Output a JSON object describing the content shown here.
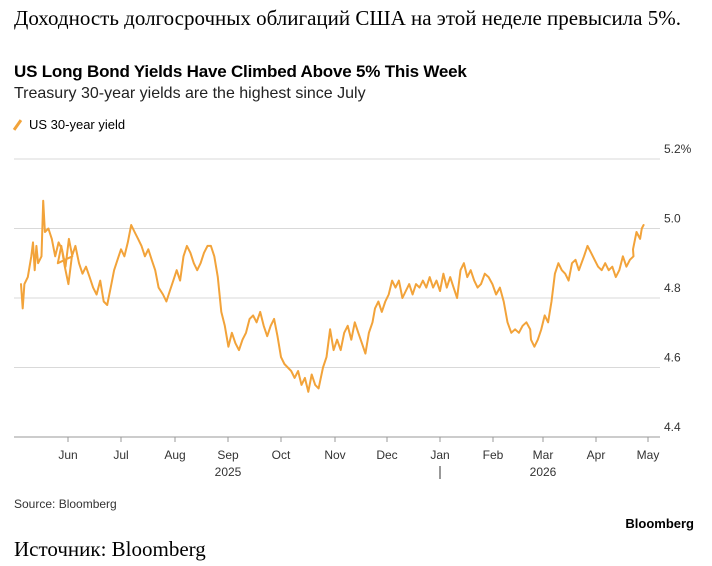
{
  "article": {
    "headline": "Доходность долгосрочных облигаций США на этой неделе превысила 5%.",
    "caption": "Источник: Bloomberg"
  },
  "chart_card": {
    "source": "Source: Bloomberg",
    "brand": "Bloomberg"
  },
  "colors": {
    "series": "#f2a33a",
    "grid": "#d9d9d9",
    "axis": "#999999",
    "text": "#333333"
  },
  "chart_data": {
    "type": "line",
    "title": "US Long Bond Yields Have Climbed Above 5% This Week",
    "subtitle": "Treasury 30-year yields are the highest since July",
    "xlabel": "",
    "ylabel": "",
    "ylim": [
      4.4,
      5.2
    ],
    "y_ticks": [
      4.4,
      4.6,
      4.8,
      5.0,
      5.2
    ],
    "y_tick_labels": [
      "4.4",
      "4.6",
      "4.8",
      "5.0",
      "5.2%"
    ],
    "x_ticks": [
      "Jun",
      "Jul",
      "Aug",
      "Sep",
      "Oct",
      "Nov",
      "Dec",
      "Jan",
      "Feb",
      "Mar",
      "Apr",
      "May"
    ],
    "x_years": [
      {
        "label": "2025",
        "month": "Sep"
      },
      {
        "label": "2026",
        "month": "Mar"
      }
    ],
    "year_divider_month": "Jan",
    "grid": true,
    "legend": "top-left",
    "series": [
      {
        "name": "US 30-year yield",
        "points": [
          [
            "May 1",
            4.84
          ],
          [
            "May 2",
            4.77
          ],
          [
            "May 3",
            4.84
          ],
          [
            "May 5",
            4.86
          ],
          [
            "May 7",
            4.92
          ],
          [
            "May 8",
            4.96
          ],
          [
            "May 9",
            4.88
          ],
          [
            "May 10",
            4.95
          ],
          [
            "May 11",
            4.9
          ],
          [
            "May 13",
            4.92
          ],
          [
            "May 14",
            5.08
          ],
          [
            "May 15",
            4.99
          ],
          [
            "May 17",
            5.0
          ],
          [
            "May 19",
            4.97
          ],
          [
            "May 21",
            4.92
          ],
          [
            "May 23",
            4.96
          ],
          [
            "May 25",
            4.94
          ],
          [
            "May 27",
            4.89
          ],
          [
            "May 29",
            4.97
          ],
          [
            "May 31",
            4.92
          ],
          [
            "Jun 2",
            4.9
          ],
          [
            "Jun 4",
            4.95
          ],
          [
            "Jun 6",
            4.89
          ],
          [
            "Jun 8",
            4.84
          ],
          [
            "Jun 10",
            4.92
          ],
          [
            "Jun 12",
            4.95
          ],
          [
            "Jun 14",
            4.9
          ],
          [
            "Jun 16",
            4.87
          ],
          [
            "Jun 18",
            4.89
          ],
          [
            "Jun 20",
            4.86
          ],
          [
            "Jun 22",
            4.83
          ],
          [
            "Jun 24",
            4.81
          ],
          [
            "Jun 26",
            4.85
          ],
          [
            "Jun 28",
            4.79
          ],
          [
            "Jun 30",
            4.78
          ],
          [
            "Jul 2",
            4.83
          ],
          [
            "Jul 4",
            4.88
          ],
          [
            "Jul 6",
            4.91
          ],
          [
            "Jul 8",
            4.94
          ],
          [
            "Jul 10",
            4.92
          ],
          [
            "Jul 12",
            4.96
          ],
          [
            "Jul 14",
            5.01
          ],
          [
            "Jul 16",
            4.99
          ],
          [
            "Jul 18",
            4.97
          ],
          [
            "Jul 20",
            4.95
          ],
          [
            "Jul 22",
            4.92
          ],
          [
            "Jul 24",
            4.94
          ],
          [
            "Jul 26",
            4.91
          ],
          [
            "Jul 28",
            4.88
          ],
          [
            "Jul 30",
            4.83
          ],
          [
            "Aug 1",
            4.81
          ],
          [
            "Aug 3",
            4.79
          ],
          [
            "Aug 5",
            4.82
          ],
          [
            "Aug 7",
            4.85
          ],
          [
            "Aug 9",
            4.88
          ],
          [
            "Aug 11",
            4.85
          ],
          [
            "Aug 13",
            4.92
          ],
          [
            "Aug 15",
            4.95
          ],
          [
            "Aug 17",
            4.93
          ],
          [
            "Aug 19",
            4.9
          ],
          [
            "Aug 21",
            4.88
          ],
          [
            "Aug 23",
            4.9
          ],
          [
            "Aug 25",
            4.93
          ],
          [
            "Aug 27",
            4.95
          ],
          [
            "Aug 29",
            4.95
          ],
          [
            "Aug 31",
            4.92
          ],
          [
            "Sep 2",
            4.86
          ],
          [
            "Sep 4",
            4.76
          ],
          [
            "Sep 6",
            4.72
          ],
          [
            "Sep 8",
            4.66
          ],
          [
            "Sep 10",
            4.7
          ],
          [
            "Sep 12",
            4.67
          ],
          [
            "Sep 14",
            4.65
          ],
          [
            "Sep 16",
            4.68
          ],
          [
            "Sep 18",
            4.7
          ],
          [
            "Sep 20",
            4.74
          ],
          [
            "Sep 22",
            4.75
          ],
          [
            "Sep 24",
            4.73
          ],
          [
            "Sep 26",
            4.76
          ],
          [
            "Sep 28",
            4.72
          ],
          [
            "Sep 30",
            4.69
          ],
          [
            "Oct 2",
            4.72
          ],
          [
            "Oct 4",
            4.74
          ],
          [
            "Oct 6",
            4.69
          ],
          [
            "Oct 8",
            4.63
          ],
          [
            "Oct 10",
            4.61
          ],
          [
            "Oct 12",
            4.6
          ],
          [
            "Oct 14",
            4.59
          ],
          [
            "Oct 16",
            4.57
          ],
          [
            "Oct 18",
            4.59
          ],
          [
            "Oct 20",
            4.55
          ],
          [
            "Oct 22",
            4.57
          ],
          [
            "Oct 24",
            4.53
          ],
          [
            "Oct 26",
            4.58
          ],
          [
            "Oct 28",
            4.55
          ],
          [
            "Oct 30",
            4.54
          ],
          [
            "Nov 1",
            4.6
          ],
          [
            "Nov 3",
            4.63
          ],
          [
            "Nov 5",
            4.71
          ],
          [
            "Nov 7",
            4.65
          ],
          [
            "Nov 9",
            4.68
          ],
          [
            "Nov 11",
            4.65
          ],
          [
            "Nov 13",
            4.7
          ],
          [
            "Nov 15",
            4.72
          ],
          [
            "Nov 17",
            4.68
          ],
          [
            "Nov 19",
            4.73
          ],
          [
            "Nov 21",
            4.7
          ],
          [
            "Nov 23",
            4.67
          ],
          [
            "Nov 25",
            4.64
          ],
          [
            "Nov 27",
            4.7
          ],
          [
            "Nov 29",
            4.73
          ],
          [
            "Dec 1",
            4.77
          ],
          [
            "Dec 3",
            4.79
          ],
          [
            "Dec 5",
            4.76
          ],
          [
            "Dec 7",
            4.79
          ],
          [
            "Dec 9",
            4.81
          ],
          [
            "Dec 11",
            4.85
          ],
          [
            "Dec 13",
            4.83
          ],
          [
            "Dec 15",
            4.85
          ],
          [
            "Dec 17",
            4.8
          ],
          [
            "Dec 19",
            4.82
          ],
          [
            "Dec 21",
            4.84
          ],
          [
            "Dec 23",
            4.81
          ],
          [
            "Dec 25",
            4.84
          ],
          [
            "Dec 27",
            4.83
          ],
          [
            "Dec 29",
            4.85
          ],
          [
            "Dec 31",
            4.83
          ],
          [
            "Jan 2",
            4.86
          ],
          [
            "Jan 4",
            4.83
          ],
          [
            "Jan 6",
            4.85
          ],
          [
            "Jan 8",
            4.82
          ],
          [
            "Jan 10",
            4.87
          ],
          [
            "Jan 12",
            4.83
          ],
          [
            "Jan 14",
            4.86
          ],
          [
            "Jan 16",
            4.83
          ],
          [
            "Jan 18",
            4.8
          ],
          [
            "Jan 20",
            4.88
          ],
          [
            "Jan 22",
            4.9
          ],
          [
            "Jan 24",
            4.86
          ],
          [
            "Jan 26",
            4.88
          ],
          [
            "Jan 28",
            4.85
          ],
          [
            "Jan 30",
            4.83
          ],
          [
            "Feb 1",
            4.84
          ],
          [
            "Feb 3",
            4.87
          ],
          [
            "Feb 5",
            4.86
          ],
          [
            "Feb 7",
            4.84
          ],
          [
            "Feb 9",
            4.81
          ],
          [
            "Feb 11",
            4.83
          ],
          [
            "Feb 13",
            4.79
          ],
          [
            "Feb 15",
            4.73
          ],
          [
            "Feb 17",
            4.7
          ],
          [
            "Feb 19",
            4.71
          ],
          [
            "Feb 21",
            4.7
          ],
          [
            "Feb 23",
            4.72
          ],
          [
            "Feb 25",
            4.73
          ],
          [
            "Feb 27",
            4.71
          ],
          [
            "Mar 1",
            4.68
          ],
          [
            "Mar 3",
            4.66
          ],
          [
            "Mar 5",
            4.68
          ],
          [
            "Mar 7",
            4.71
          ],
          [
            "Mar 9",
            4.75
          ],
          [
            "Mar 11",
            4.73
          ],
          [
            "Mar 13",
            4.79
          ],
          [
            "Mar 15",
            4.87
          ],
          [
            "Mar 17",
            4.9
          ],
          [
            "Mar 19",
            4.88
          ],
          [
            "Mar 21",
            4.87
          ],
          [
            "Mar 23",
            4.85
          ],
          [
            "Mar 25",
            4.9
          ],
          [
            "Mar 27",
            4.91
          ],
          [
            "Mar 29",
            4.88
          ],
          [
            "Apr 1",
            4.92
          ],
          [
            "Apr 3",
            4.95
          ],
          [
            "Apr 5",
            4.93
          ],
          [
            "Apr 7",
            4.91
          ],
          [
            "Apr 9",
            4.89
          ],
          [
            "Apr 11",
            4.88
          ],
          [
            "Apr 13",
            4.9
          ],
          [
            "Apr 15",
            4.88
          ],
          [
            "Apr 17",
            4.89
          ],
          [
            "Apr 19",
            4.86
          ],
          [
            "Apr 21",
            4.88
          ],
          [
            "Apr 23",
            4.92
          ],
          [
            "Apr 25",
            4.89
          ],
          [
            "Apr 27",
            4.91
          ],
          [
            "Apr 29",
            4.92
          ],
          [
            "May 1",
            4.94
          ],
          [
            "May 3",
            4.99
          ],
          [
            "May 5",
            4.97
          ],
          [
            "May 6",
            5.0
          ],
          [
            "May 7",
            5.01
          ]
        ]
      }
    ]
  }
}
